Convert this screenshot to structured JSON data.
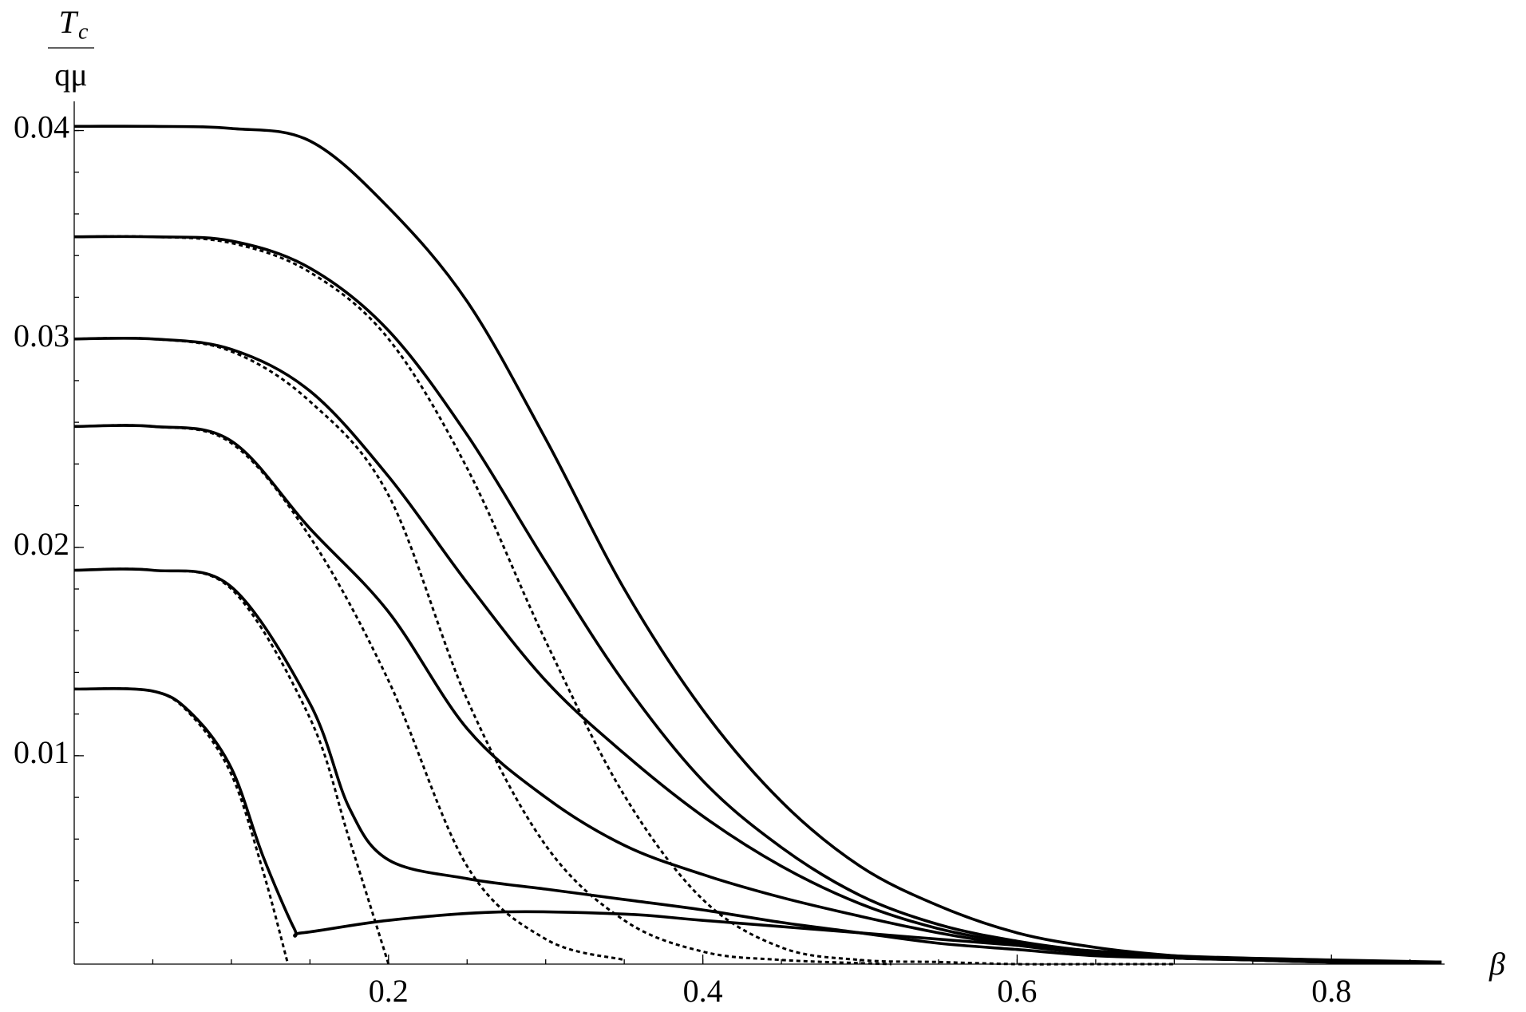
{
  "chart_data": {
    "type": "line",
    "ylabel_numerator": "T",
    "ylabel_subscript": "c",
    "ylabel_denominator": "qμ",
    "xlabel": "β",
    "xlim": [
      0,
      0.872
    ],
    "ylim": [
      0,
      0.0414
    ],
    "xticks": [
      0.2,
      0.4,
      0.6,
      0.8
    ],
    "yticks": [
      0.01,
      0.02,
      0.03,
      0.04
    ],
    "series": [
      {
        "color": "#000000",
        "style": "solid",
        "x": [
          0,
          0.05,
          0.1,
          0.15,
          0.2,
          0.25,
          0.3,
          0.35,
          0.4,
          0.45,
          0.5,
          0.55,
          0.6,
          0.65,
          0.7,
          0.75,
          0.8,
          0.87
        ],
        "values": [
          0.0402,
          0.0402,
          0.0401,
          0.0395,
          0.0363,
          0.0318,
          0.0252,
          0.018,
          0.0122,
          0.0078,
          0.0047,
          0.0028,
          0.0015,
          0.0008,
          0.0004,
          0.0002,
          0.0001,
          0.0001
        ]
      },
      {
        "color": "#000000",
        "style": "solid",
        "x": [
          0,
          0.05,
          0.1,
          0.15,
          0.2,
          0.25,
          0.3,
          0.35,
          0.4,
          0.45,
          0.5,
          0.55,
          0.6,
          0.65,
          0.7,
          0.75,
          0.8,
          0.87
        ],
        "values": [
          0.0349,
          0.0349,
          0.0347,
          0.0334,
          0.0304,
          0.0254,
          0.0193,
          0.0135,
          0.0088,
          0.0056,
          0.0033,
          0.0019,
          0.0011,
          0.0006,
          0.0003,
          0.0002,
          0.0001,
          0.0001
        ]
      },
      {
        "color": "#000000",
        "style": "dashed",
        "x": [
          0,
          0.05,
          0.1,
          0.15,
          0.2,
          0.25,
          0.3,
          0.35,
          0.4,
          0.45,
          0.5,
          0.55,
          0.6,
          0.65,
          0.7
        ],
        "values": [
          0.0349,
          0.0349,
          0.0346,
          0.0332,
          0.03,
          0.0238,
          0.0155,
          0.0081,
          0.0031,
          0.0008,
          0.0002,
          0.0001,
          0,
          0,
          0
        ]
      },
      {
        "color": "#000000",
        "style": "solid",
        "x": [
          0,
          0.05,
          0.1,
          0.15,
          0.2,
          0.25,
          0.3,
          0.35,
          0.4,
          0.45,
          0.5,
          0.55,
          0.6,
          0.65,
          0.7,
          0.75,
          0.8,
          0.87
        ],
        "values": [
          0.03,
          0.03,
          0.0295,
          0.0275,
          0.0234,
          0.0183,
          0.0136,
          0.0101,
          0.0071,
          0.0047,
          0.0029,
          0.0017,
          0.001,
          0.0006,
          0.0003,
          0.0002,
          0.0001,
          0.0001
        ]
      },
      {
        "color": "#000000",
        "style": "dashed",
        "x": [
          0,
          0.05,
          0.1,
          0.15,
          0.2,
          0.25,
          0.3,
          0.35,
          0.4,
          0.45,
          0.52
        ],
        "values": [
          0.03,
          0.03,
          0.0294,
          0.027,
          0.0225,
          0.0127,
          0.0057,
          0.0021,
          0.0006,
          0.0002,
          0
        ]
      },
      {
        "color": "#000000",
        "style": "solid",
        "x": [
          0,
          0.05,
          0.1,
          0.15,
          0.2,
          0.25,
          0.3,
          0.35,
          0.4,
          0.45,
          0.5,
          0.55,
          0.6,
          0.65,
          0.7,
          0.75,
          0.8,
          0.87
        ],
        "values": [
          0.0258,
          0.0258,
          0.0251,
          0.0209,
          0.0169,
          0.0113,
          0.008,
          0.0057,
          0.0043,
          0.0032,
          0.0023,
          0.0015,
          0.0009,
          0.0005,
          0.0003,
          0.0002,
          0.0001,
          0.0001
        ]
      },
      {
        "color": "#000000",
        "style": "dashed",
        "x": [
          0,
          0.05,
          0.1,
          0.15,
          0.2,
          0.25,
          0.3,
          0.35
        ],
        "values": [
          0.0258,
          0.0258,
          0.025,
          0.0205,
          0.0136,
          0.0047,
          0.0012,
          0.0002
        ]
      },
      {
        "color": "#000000",
        "style": "solid",
        "x": [
          0,
          0.05,
          0.1,
          0.15,
          0.175,
          0.2,
          0.25,
          0.3,
          0.35,
          0.4,
          0.45,
          0.5,
          0.55,
          0.6,
          0.65,
          0.7,
          0.75,
          0.8,
          0.87
        ],
        "values": [
          0.0189,
          0.0189,
          0.0181,
          0.0125,
          0.0075,
          0.005,
          0.0041,
          0.0036,
          0.0031,
          0.0026,
          0.002,
          0.0015,
          0.001,
          0.0007,
          0.0004,
          0.0003,
          0.0002,
          0.0001,
          0.0001
        ]
      },
      {
        "color": "#000000",
        "style": "dashed",
        "x": [
          0,
          0.05,
          0.1,
          0.15,
          0.175,
          0.2
        ],
        "values": [
          0.0189,
          0.0189,
          0.018,
          0.0118,
          0.006,
          0
        ]
      },
      {
        "color": "#000000",
        "style": "solid",
        "x": [
          0,
          0.05,
          0.075,
          0.1,
          0.12,
          0.14,
          0.145,
          0.2,
          0.27,
          0.35,
          0.4,
          0.5,
          0.6,
          0.7,
          0.8,
          0.87
        ],
        "values": [
          0.0132,
          0.0131,
          0.012,
          0.0094,
          0.0052,
          0.0017,
          0.0015,
          0.0021,
          0.0025,
          0.0024,
          0.0021,
          0.0015,
          0.0009,
          0.0004,
          0.0002,
          0.0001
        ]
      },
      {
        "color": "#000000",
        "style": "dashed",
        "x": [
          0,
          0.05,
          0.075,
          0.1,
          0.12,
          0.136
        ],
        "values": [
          0.0132,
          0.0131,
          0.0119,
          0.0091,
          0.0045,
          0
        ]
      }
    ]
  }
}
